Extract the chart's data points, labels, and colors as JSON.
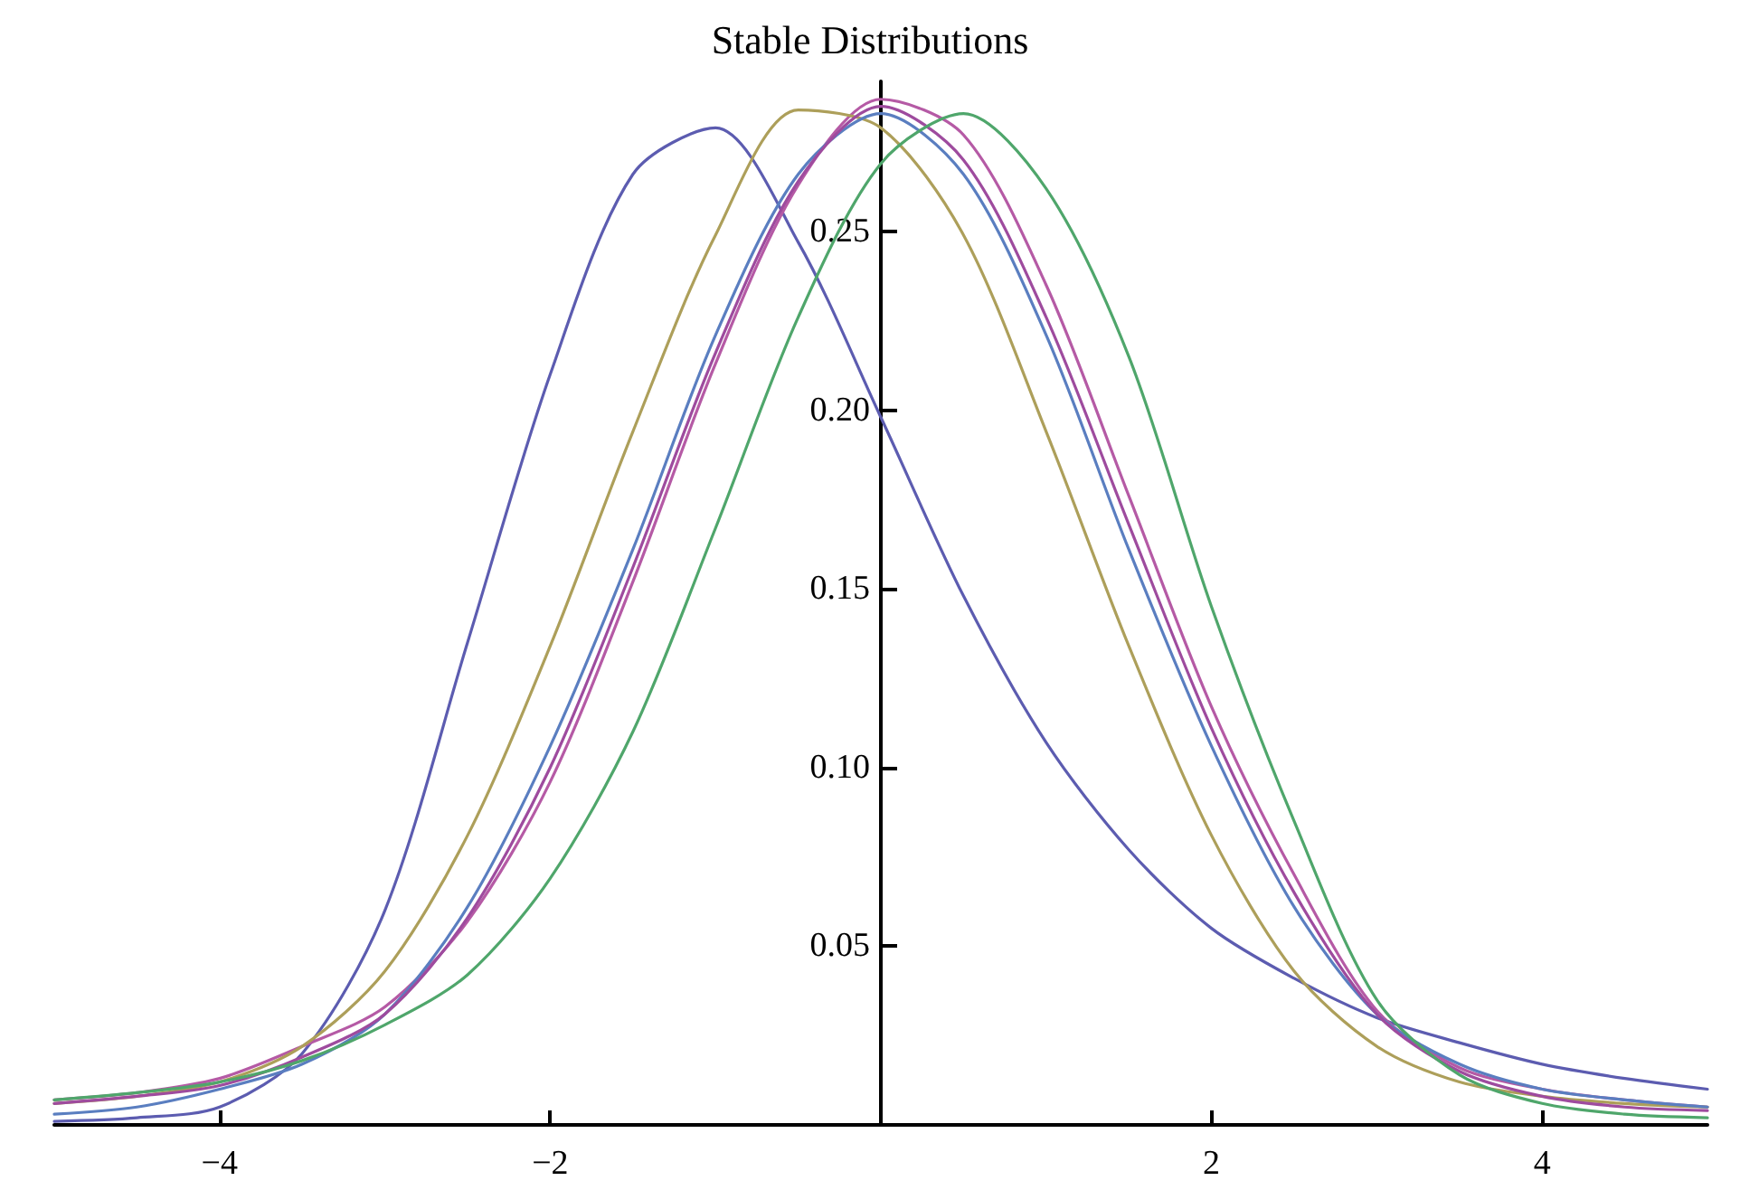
{
  "chart_data": {
    "type": "line",
    "title": "Stable Distributions",
    "x": [
      -5,
      -4.5,
      -4,
      -3.5,
      -3,
      -2.5,
      -2,
      -1.5,
      -1,
      -0.5,
      0,
      0.5,
      1,
      1.5,
      2,
      2.5,
      3,
      3.5,
      4,
      4.5,
      5
    ],
    "series": [
      {
        "color": "#5c5cb0",
        "values": [
          0.001,
          0.002,
          0.005,
          0.02,
          0.06,
          0.135,
          0.21,
          0.266,
          0.279,
          0.247,
          0.198,
          0.148,
          0.107,
          0.077,
          0.055,
          0.041,
          0.03,
          0.023,
          0.017,
          0.013,
          0.01
        ]
      },
      {
        "color": "#b55aa5",
        "values": [
          0.007,
          0.009,
          0.013,
          0.022,
          0.033,
          0.057,
          0.096,
          0.152,
          0.213,
          0.263,
          0.287,
          0.277,
          0.235,
          0.176,
          0.117,
          0.07,
          0.032,
          0.016,
          0.01,
          0.007,
          0.005
        ]
      },
      {
        "color": "#ad9f5a",
        "values": [
          0.006,
          0.008,
          0.012,
          0.022,
          0.043,
          0.081,
          0.134,
          0.194,
          0.249,
          0.284,
          0.279,
          0.249,
          0.194,
          0.134,
          0.081,
          0.043,
          0.022,
          0.012,
          0.008,
          0.006,
          0.005
        ]
      },
      {
        "color": "#5a7ec0",
        "values": [
          0.003,
          0.005,
          0.01,
          0.017,
          0.031,
          0.061,
          0.106,
          0.161,
          0.221,
          0.266,
          0.283,
          0.266,
          0.221,
          0.161,
          0.106,
          0.061,
          0.031,
          0.017,
          0.01,
          0.007,
          0.005
        ]
      },
      {
        "color": "#9e4b9e",
        "values": [
          0.006,
          0.008,
          0.011,
          0.019,
          0.031,
          0.058,
          0.1,
          0.156,
          0.216,
          0.264,
          0.285,
          0.27,
          0.226,
          0.168,
          0.111,
          0.065,
          0.031,
          0.015,
          0.008,
          0.005,
          0.004
        ]
      },
      {
        "color": "#4fa66b",
        "values": [
          0.007,
          0.009,
          0.012,
          0.018,
          0.028,
          0.042,
          0.069,
          0.11,
          0.167,
          0.226,
          0.269,
          0.283,
          0.262,
          0.215,
          0.145,
          0.085,
          0.035,
          0.014,
          0.006,
          0.003,
          0.002
        ]
      }
    ],
    "xlim": [
      -5,
      5
    ],
    "xticks": [
      {
        "value": -4,
        "label": "−4"
      },
      {
        "value": -2,
        "label": "−2"
      },
      2,
      4
    ],
    "ylim": [
      0,
      0.292
    ],
    "yticks": [
      0.05,
      {
        "value": 0.1,
        "label": "0.10"
      },
      0.15,
      {
        "value": 0.2,
        "label": "0.20"
      },
      0.25
    ],
    "grid": false
  }
}
